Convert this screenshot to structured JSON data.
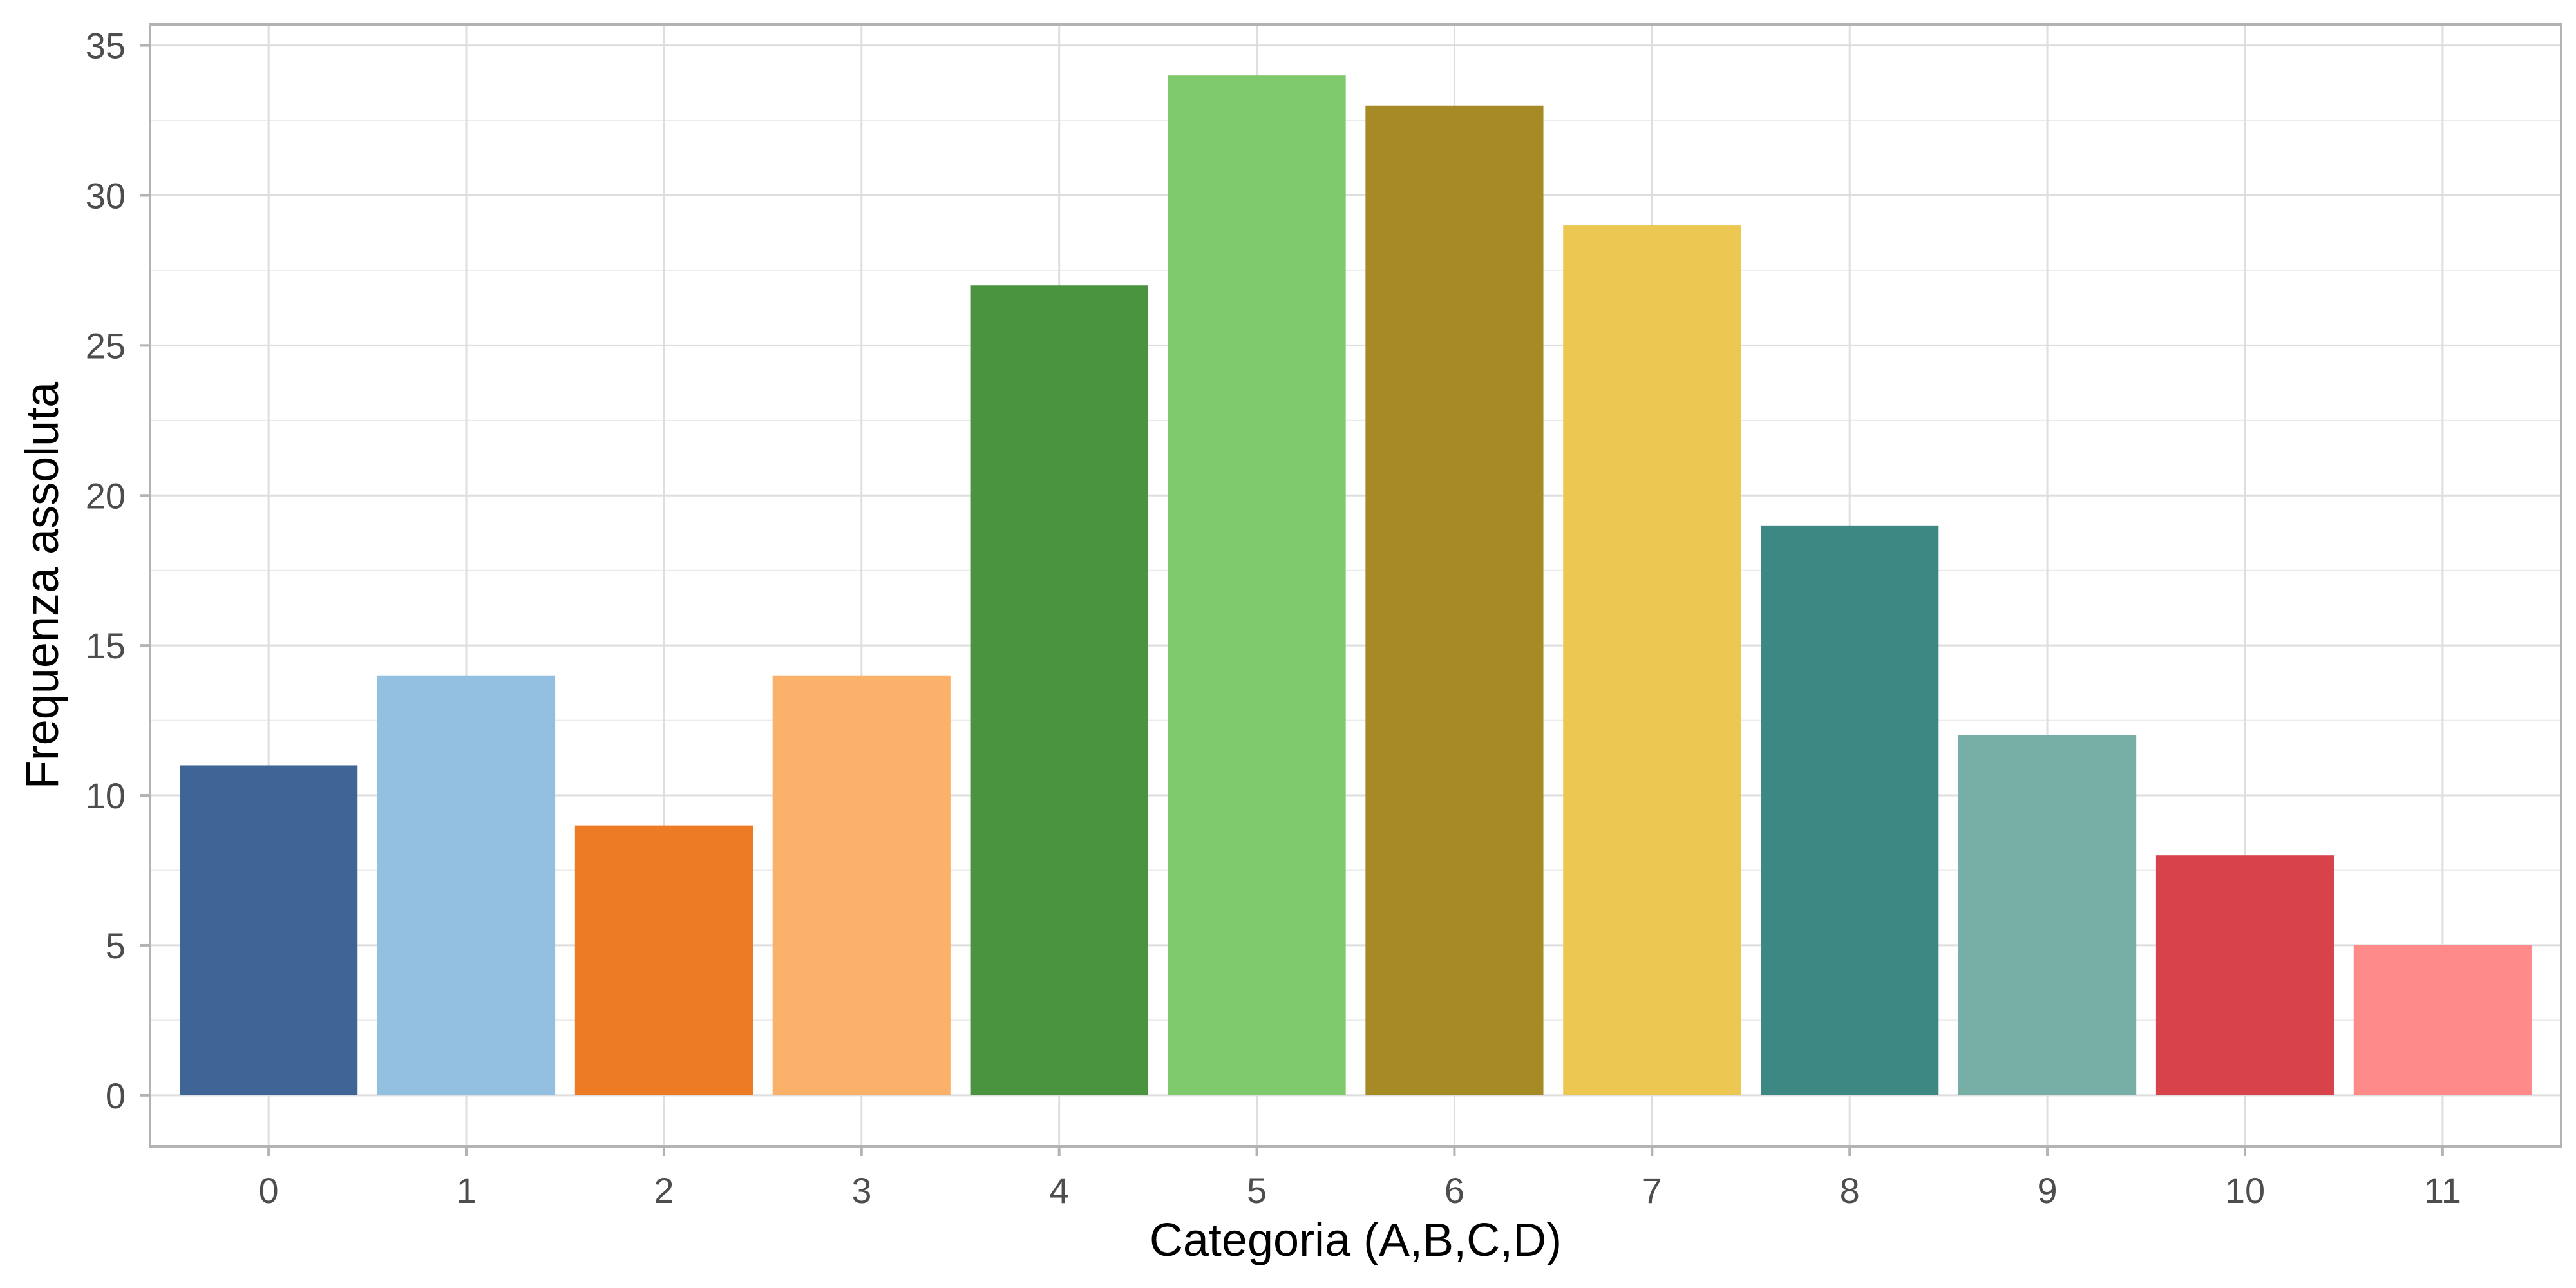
{
  "chart_data": {
    "type": "bar",
    "title": "",
    "xlabel": "Categoria (A,B,C,D)",
    "ylabel": "Frequenza assoluta",
    "categories": [
      "0",
      "1",
      "2",
      "3",
      "4",
      "5",
      "6",
      "7",
      "8",
      "9",
      "10",
      "11"
    ],
    "values": [
      11,
      14,
      9,
      14,
      27,
      34,
      33,
      29,
      19,
      12,
      8,
      5
    ],
    "colors": [
      "#3f6496",
      "#93bfe1",
      "#ed7b24",
      "#fcb16b",
      "#4a943f",
      "#7ec96c",
      "#a68a26",
      "#ecc852",
      "#3d8882",
      "#77afa7",
      "#d8434b",
      "#fe8a89"
    ],
    "ylim": [
      -1.7,
      35.7
    ],
    "yticks": [
      0,
      5,
      10,
      15,
      20,
      25,
      30,
      35
    ],
    "grid": true,
    "legend": "none"
  }
}
